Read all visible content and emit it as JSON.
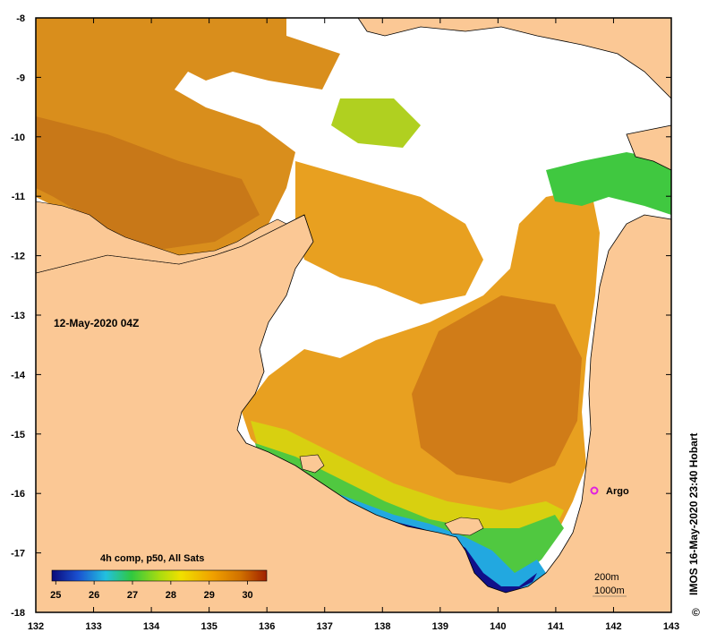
{
  "map": {
    "date_label": "12-May-2020 04Z",
    "credit": "IMOS 16-May-2020 23:40 Hobart",
    "copyright_symbol": "©",
    "argo_label": "Argo",
    "depth_labels": [
      "200m",
      "1000m"
    ],
    "lon_ticks": [
      "132",
      "133",
      "134",
      "135",
      "136",
      "137",
      "138",
      "139",
      "140",
      "141",
      "142",
      "143"
    ],
    "lat_ticks": [
      "-8",
      "-9",
      "-10",
      "-11",
      "-12",
      "-13",
      "-14",
      "-15",
      "-16",
      "-17",
      "-18"
    ]
  },
  "legend": {
    "title": "4h comp, p50, All Sats",
    "ticks": [
      "25",
      "26",
      "27",
      "28",
      "29",
      "30"
    ],
    "colors": [
      "#0a0a7a",
      "#1a50d0",
      "#22c0e0",
      "#30c840",
      "#a8dc10",
      "#f0e000",
      "#f0a000",
      "#d07000",
      "#a02000"
    ]
  },
  "colors": {
    "land": "#fbc895",
    "sst_warm": "#d98e1c",
    "sst_mid": "#e8a020",
    "sst_cool": "#70d020",
    "argo": "#e020e0"
  }
}
